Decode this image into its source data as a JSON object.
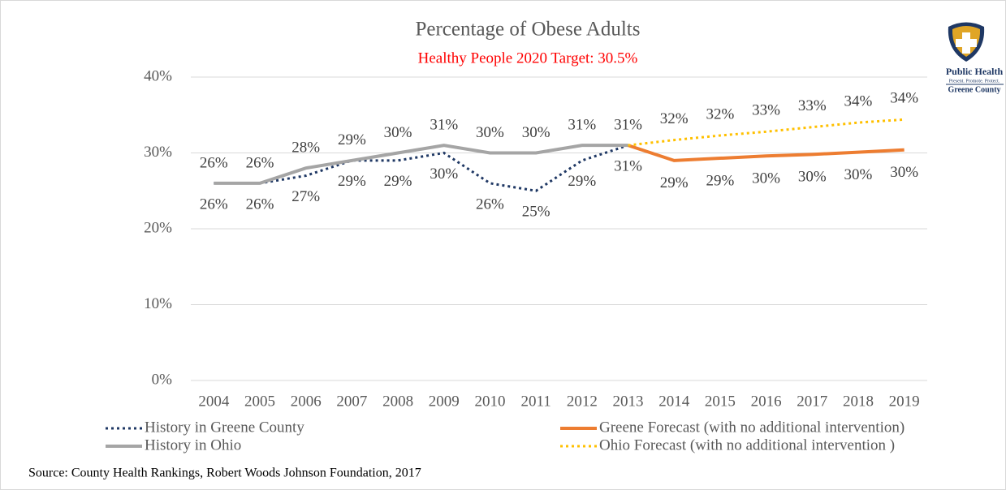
{
  "chart_data": {
    "type": "line",
    "title": "Percentage of Obese Adults",
    "subtitle": "Healthy People 2020 Target: 30.5%",
    "categories": [
      "2004",
      "2005",
      "2006",
      "2007",
      "2008",
      "2009",
      "2010",
      "2011",
      "2012",
      "2013",
      "2014",
      "2015",
      "2016",
      "2017",
      "2018",
      "2019"
    ],
    "ylim": [
      0,
      40
    ],
    "yticks": [
      {
        "value": 0,
        "label": "0%"
      },
      {
        "value": 10,
        "label": "10%"
      },
      {
        "value": 20,
        "label": "20%"
      },
      {
        "value": 30,
        "label": "30%"
      },
      {
        "value": 40,
        "label": "40%"
      }
    ],
    "grid": true,
    "series": [
      {
        "name": "History in Greene County",
        "color": "#1f3864",
        "style": "dotted",
        "values": [
          26,
          26,
          27,
          29,
          29,
          30,
          26,
          25,
          29,
          31,
          null,
          null,
          null,
          null,
          null,
          null
        ],
        "value_labels": [
          "26%",
          "26%",
          "27%",
          "29%",
          "29%",
          "30%",
          "26%",
          "25%",
          "29%",
          "31%",
          null,
          null,
          null,
          null,
          null,
          null
        ]
      },
      {
        "name": "Greene Forecast (with no additional intervention)",
        "color": "#ed7d31",
        "style": "solid",
        "values": [
          null,
          null,
          null,
          null,
          null,
          null,
          null,
          null,
          null,
          31,
          29,
          29.3,
          29.6,
          29.8,
          30.1,
          30.4
        ],
        "value_labels": [
          null,
          null,
          null,
          null,
          null,
          null,
          null,
          null,
          null,
          null,
          "29%",
          "29%",
          "30%",
          "30%",
          "30%",
          "30%"
        ]
      },
      {
        "name": "History in Ohio",
        "color": "#a5a5a5",
        "style": "solid",
        "values": [
          26,
          26,
          28,
          29,
          30,
          31,
          30,
          30,
          31,
          31,
          null,
          null,
          null,
          null,
          null,
          null
        ],
        "value_labels": [
          "26%",
          "26%",
          "28%",
          "29%",
          "30%",
          "31%",
          "30%",
          "30%",
          "31%",
          "31%",
          null,
          null,
          null,
          null,
          null,
          null
        ]
      },
      {
        "name": "Ohio Forecast (with no additional intervention )",
        "color": "#ffc000",
        "style": "dotted",
        "values": [
          null,
          null,
          null,
          null,
          null,
          null,
          null,
          null,
          null,
          31,
          31.7,
          32.3,
          32.8,
          33.4,
          34.0,
          34.4
        ],
        "value_labels": [
          null,
          null,
          null,
          null,
          null,
          null,
          null,
          null,
          null,
          null,
          "32%",
          "32%",
          "33%",
          "33%",
          "34%",
          "34%"
        ]
      }
    ],
    "source": "Source: County Health Rankings, Robert Woods Johnson Foundation, 2017"
  },
  "logo": {
    "name": "Public Health",
    "tagline": "Present. Promote. Protect.",
    "county": "Greene County"
  }
}
